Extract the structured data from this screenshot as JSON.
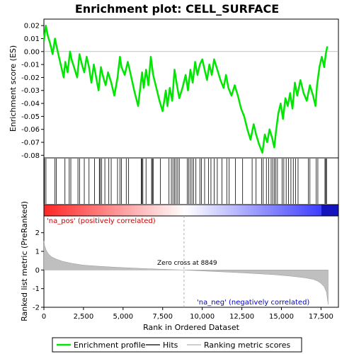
{
  "chart_data": [
    {
      "type": "line",
      "title": "Enrichment plot: CELL_SURFACE",
      "ylabel": "Enrichment score (ES)",
      "xlim": [
        0,
        18600
      ],
      "ylim": [
        -0.082,
        0.025
      ],
      "yticks": [
        0.02,
        0.01,
        0.0,
        -0.01,
        -0.02,
        -0.03,
        -0.04,
        -0.05,
        -0.06,
        -0.07,
        -0.08
      ],
      "ytick_labels": [
        "0.02",
        "0.01",
        "0.00",
        "-0.01",
        "-0.02",
        "-0.03",
        "-0.04",
        "-0.05",
        "-0.06",
        "-0.07",
        "-0.08"
      ],
      "grid": false,
      "line_color": "#00e600",
      "series": [
        {
          "name": "Enrichment profile",
          "x": [
            0,
            120,
            250,
            400,
            550,
            700,
            800,
            950,
            1100,
            1250,
            1350,
            1500,
            1650,
            1750,
            1900,
            2100,
            2250,
            2400,
            2550,
            2700,
            2850,
            3000,
            3150,
            3300,
            3450,
            3600,
            3750,
            3900,
            4050,
            4250,
            4450,
            4650,
            4800,
            4900,
            5100,
            5300,
            5450,
            5700,
            5950,
            6200,
            6300,
            6450,
            6600,
            6750,
            6900,
            7100,
            7300,
            7500,
            7700,
            7800,
            7950,
            8100,
            8250,
            8400,
            8550,
            8750,
            8950,
            9100,
            9250,
            9400,
            9550,
            9700,
            9850,
            10000,
            10150,
            10300,
            10450,
            10600,
            10750,
            10950,
            11150,
            11350,
            11500,
            11650,
            11850,
            12050,
            12250,
            12450,
            12650,
            12850,
            13050,
            13250,
            13400,
            13600,
            13800,
            13950,
            14100,
            14250,
            14400,
            14550,
            14650,
            14800,
            14950,
            15100,
            15250,
            15400,
            15550,
            15700,
            15850,
            16000,
            16200,
            16400,
            16600,
            16800,
            17000,
            17150,
            17250,
            17400,
            17550,
            17700,
            17800,
            17900
          ],
          "y": [
            0.008,
            0.02,
            0.012,
            0.006,
            -0.002,
            0.01,
            0.004,
            -0.004,
            -0.012,
            -0.02,
            -0.008,
            -0.016,
            0.0,
            -0.006,
            -0.012,
            -0.02,
            -0.002,
            -0.01,
            -0.016,
            -0.004,
            -0.012,
            -0.024,
            -0.01,
            -0.02,
            -0.03,
            -0.012,
            -0.02,
            -0.026,
            -0.016,
            -0.024,
            -0.034,
            -0.02,
            -0.004,
            -0.012,
            -0.018,
            -0.008,
            -0.016,
            -0.03,
            -0.042,
            -0.016,
            -0.028,
            -0.014,
            -0.026,
            -0.004,
            -0.018,
            -0.028,
            -0.038,
            -0.046,
            -0.03,
            -0.042,
            -0.028,
            -0.038,
            -0.014,
            -0.026,
            -0.036,
            -0.028,
            -0.018,
            -0.03,
            -0.014,
            -0.024,
            -0.008,
            -0.018,
            -0.01,
            -0.006,
            -0.014,
            -0.022,
            -0.01,
            -0.018,
            -0.006,
            -0.014,
            -0.022,
            -0.028,
            -0.018,
            -0.028,
            -0.034,
            -0.026,
            -0.034,
            -0.044,
            -0.05,
            -0.06,
            -0.068,
            -0.056,
            -0.064,
            -0.072,
            -0.078,
            -0.064,
            -0.07,
            -0.06,
            -0.066,
            -0.074,
            -0.062,
            -0.048,
            -0.04,
            -0.052,
            -0.036,
            -0.042,
            -0.032,
            -0.044,
            -0.024,
            -0.034,
            -0.022,
            -0.032,
            -0.038,
            -0.026,
            -0.034,
            -0.042,
            -0.026,
            -0.012,
            -0.004,
            -0.012,
            -0.002,
            0.004
          ]
        }
      ],
      "hits": [
        40,
        130,
        700,
        780,
        1330,
        1600,
        1700,
        2150,
        2250,
        2550,
        2850,
        3200,
        3500,
        3550,
        3650,
        3850,
        4100,
        4250,
        4650,
        4800,
        4900,
        5200,
        5350,
        6150,
        6200,
        6250,
        6450,
        6800,
        6850,
        6900,
        7350,
        7900,
        8050,
        8150,
        8250,
        8350,
        8450,
        8550,
        9050,
        9150,
        9250,
        9350,
        9450,
        9600,
        9850,
        9950,
        10150,
        10400,
        10550,
        10750,
        10950,
        11250,
        11550,
        11700,
        12100,
        12550,
        13150,
        13400,
        13750,
        13850,
        14050,
        14200,
        14350,
        14450,
        14550,
        14650,
        14750,
        15050,
        15150,
        15300,
        15450,
        15600,
        15750,
        15900,
        16050,
        16700,
        16800,
        17200,
        17300,
        17750,
        17800,
        17850
      ]
    },
    {
      "type": "area",
      "xlabel": "Rank in Ordered Dataset",
      "ylabel": "Ranked list metric (PreRanked)",
      "xlim": [
        0,
        18600
      ],
      "ylim": [
        -2,
        2.9
      ],
      "yticks": [
        2,
        1,
        0,
        -1,
        -2
      ],
      "ytick_labels": [
        "2",
        "1",
        "0",
        "-1",
        "-2"
      ],
      "xticks": [
        0,
        2500,
        5000,
        7500,
        10000,
        12500,
        15000,
        17500
      ],
      "xtick_labels": [
        "0",
        "2,500",
        "5,000",
        "7,500",
        "10,000",
        "12,500",
        "15,000",
        "17,500"
      ],
      "zero_cross": 8849,
      "fill_color": "#bfbfbf",
      "series": [
        {
          "name": "Ranking metric scores",
          "x": [
            0,
            50,
            150,
            300,
            500,
            800,
            1200,
            1800,
            2500,
            3500,
            4500,
            5500,
            6500,
            7500,
            8500,
            8849,
            9500,
            10500,
            11500,
            12500,
            13500,
            14500,
            15500,
            16500,
            17000,
            17300,
            17500,
            17700,
            17850,
            17950
          ],
          "y": [
            1.55,
            1.3,
            1.05,
            0.85,
            0.7,
            0.58,
            0.46,
            0.35,
            0.26,
            0.2,
            0.15,
            0.11,
            0.07,
            0.04,
            0.01,
            0.0,
            -0.03,
            -0.07,
            -0.11,
            -0.15,
            -0.2,
            -0.25,
            -0.32,
            -0.42,
            -0.5,
            -0.6,
            -0.72,
            -0.9,
            -1.2,
            -1.85
          ]
        }
      ],
      "annotations": {
        "pos_label": "'na_pos' (positively correlated)",
        "neg_label": "'na_neg' (negatively correlated)",
        "zero_label": "Zero cross at 8849"
      }
    }
  ],
  "legend": {
    "items": [
      {
        "label": "Enrichment profile",
        "color": "#00e600"
      },
      {
        "label": "Hits",
        "color": "#000000"
      },
      {
        "label": "Ranking metric scores",
        "color": "#bfbfbf"
      }
    ]
  }
}
